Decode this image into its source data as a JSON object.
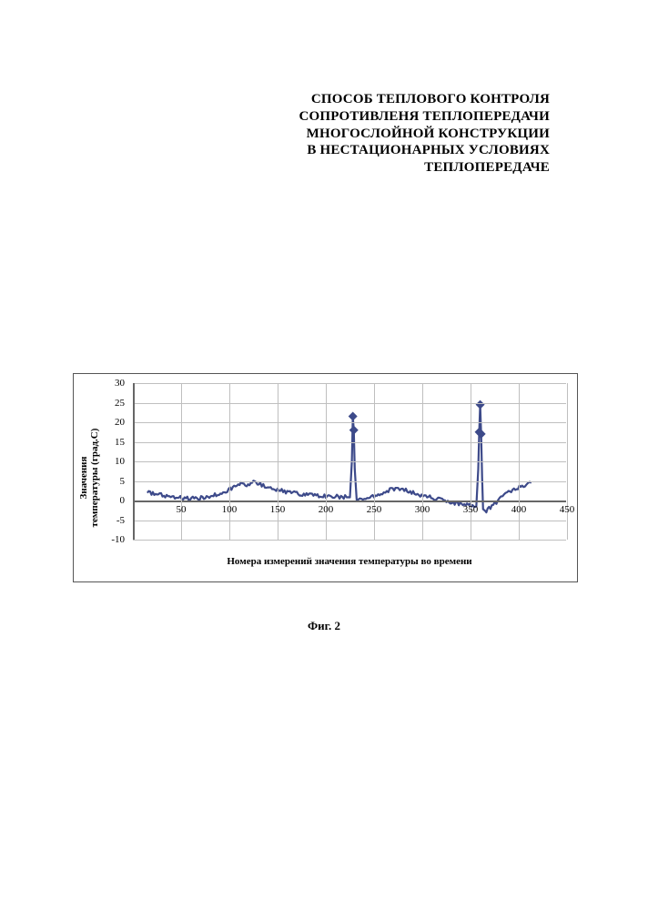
{
  "title": {
    "line1": "СПОСОБ ТЕПЛОВОГО КОНТРОЛЯ",
    "line2": "СОПРОТИВЛЕНЯ ТЕПЛОПЕРЕДАЧИ",
    "line3": "МНОГОСЛОЙНОЙ КОНСТРУКЦИИ",
    "line4": "В НЕСТАЦИОНАРНЫХ УСЛОВИЯХ",
    "line5": "ТЕПЛОПЕРЕДАЧЕ"
  },
  "caption": "Фиг. 2",
  "chart": {
    "type": "line",
    "ylabel_line1": "Значения",
    "ylabel_line2": "температуры (град.С)",
    "xlabel": "Номера измерений значения температуры во времени",
    "ylim": [
      -10,
      30
    ],
    "ytick_step": 5,
    "xlim": [
      0,
      450
    ],
    "xtick_step": 50,
    "x_tick_first_label": 50,
    "grid_color": "#bfbfbf",
    "axis_color": "#666666",
    "border_color": "#555555",
    "background_color": "#ffffff",
    "label_fontsize": 11,
    "series": {
      "color": "#3d4a8a",
      "line_width": 2.2,
      "marker": "diamond",
      "marker_size": 5,
      "marker_color": "#3d4a8a",
      "points": [
        [
          15,
          2.0
        ],
        [
          25,
          1.8
        ],
        [
          35,
          1.2
        ],
        [
          45,
          0.8
        ],
        [
          55,
          0.5
        ],
        [
          65,
          0.5
        ],
        [
          75,
          0.8
        ],
        [
          85,
          1.4
        ],
        [
          95,
          2.2
        ],
        [
          105,
          3.4
        ],
        [
          112,
          4.4
        ],
        [
          118,
          4.0
        ],
        [
          125,
          4.6
        ],
        [
          132,
          4.2
        ],
        [
          140,
          3.4
        ],
        [
          150,
          2.8
        ],
        [
          160,
          2.2
        ],
        [
          170,
          1.8
        ],
        [
          180,
          1.5
        ],
        [
          190,
          1.3
        ],
        [
          200,
          1.1
        ],
        [
          210,
          1.0
        ],
        [
          220,
          0.9
        ],
        [
          225,
          0.8
        ],
        [
          227,
          10.0
        ],
        [
          228,
          21.5
        ],
        [
          229,
          18.0
        ],
        [
          230,
          8.0
        ],
        [
          232,
          0.5
        ],
        [
          240,
          0.6
        ],
        [
          250,
          1.2
        ],
        [
          260,
          2.0
        ],
        [
          268,
          2.9
        ],
        [
          275,
          3.2
        ],
        [
          283,
          2.6
        ],
        [
          295,
          1.6
        ],
        [
          305,
          1.0
        ],
        [
          315,
          0.4
        ],
        [
          325,
          -0.2
        ],
        [
          335,
          -0.7
        ],
        [
          345,
          -1.0
        ],
        [
          352,
          -1.4
        ],
        [
          356,
          -1.5
        ],
        [
          358,
          8.0
        ],
        [
          359,
          17.5
        ],
        [
          360,
          24.5
        ],
        [
          361,
          17.0
        ],
        [
          362,
          6.0
        ],
        [
          363,
          -2.5
        ],
        [
          365,
          -3.0
        ],
        [
          372,
          -1.5
        ],
        [
          380,
          0.3
        ],
        [
          388,
          1.8
        ],
        [
          395,
          2.8
        ],
        [
          402,
          3.6
        ],
        [
          408,
          4.2
        ],
        [
          413,
          4.5
        ]
      ],
      "noise_amp": 0.5
    }
  }
}
